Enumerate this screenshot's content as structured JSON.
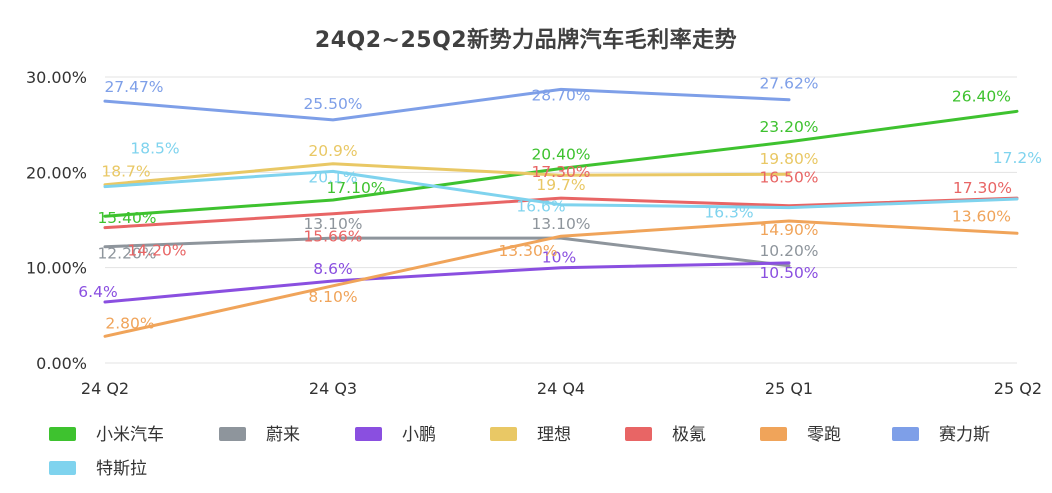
{
  "chart_data": {
    "type": "line",
    "title": "24Q2~25Q2新势力品牌汽车毛利率走势",
    "categories": [
      "24 Q2",
      "24 Q3",
      "24 Q4",
      "25 Q1",
      "25 Q2"
    ],
    "y_axis": {
      "min": 0,
      "max": 30,
      "ticks": [
        0,
        10,
        20,
        30
      ],
      "tick_labels": [
        "0.00%",
        "10.00%",
        "20.00%",
        "30.00%"
      ]
    },
    "grid": true,
    "legend_position": "bottom",
    "series": [
      {
        "name": "小米汽车",
        "color": "#3ec22f",
        "values": [
          15.4,
          17.1,
          20.4,
          23.2,
          26.4
        ],
        "labels": [
          "15.40%",
          "17.10%",
          "20.40%",
          "23.20%",
          "26.40%"
        ]
      },
      {
        "name": "蔚来",
        "color": "#8e959c",
        "values": [
          12.2,
          13.1,
          13.1,
          10.2,
          null
        ],
        "labels": [
          "12.20%",
          "13.10%",
          "13.10%",
          "10.20%",
          null
        ]
      },
      {
        "name": "小鹏",
        "color": "#8a4fe0",
        "values": [
          6.4,
          8.6,
          10,
          10.5,
          null
        ],
        "labels": [
          "6.4%",
          "8.6%",
          "10%",
          "10.50%",
          null
        ]
      },
      {
        "name": "理想",
        "color": "#e9c865",
        "values": [
          18.7,
          20.9,
          19.7,
          19.8,
          null
        ],
        "labels": [
          "18.7%",
          "20.9%",
          "19.7%",
          "19.80%",
          null
        ]
      },
      {
        "name": "极氪",
        "color": "#e86565",
        "values": [
          14.2,
          15.66,
          17.3,
          16.5,
          17.3
        ],
        "labels": [
          "14.20%",
          "15.66%",
          "17.30%",
          "16.50%",
          "17.30%"
        ]
      },
      {
        "name": "零跑",
        "color": "#f0a45a",
        "values": [
          2.8,
          8.1,
          13.3,
          14.9,
          13.6
        ],
        "labels": [
          "2.80%",
          "8.10%",
          "13.30%",
          "14.90%",
          "13.60%"
        ]
      },
      {
        "name": "赛力斯",
        "color": "#7e9fe8",
        "values": [
          27.47,
          25.5,
          28.7,
          27.62,
          null
        ],
        "labels": [
          "27.47%",
          "25.50%",
          "28.70%",
          "27.62%",
          null
        ]
      },
      {
        "name": "特斯拉",
        "color": "#7fd3ee",
        "values": [
          18.5,
          20.1,
          16.6,
          16.3,
          17.2
        ],
        "labels": [
          "18.5%",
          "20.1%",
          "16.6%",
          "16.3%",
          "17.2%"
        ]
      }
    ]
  }
}
